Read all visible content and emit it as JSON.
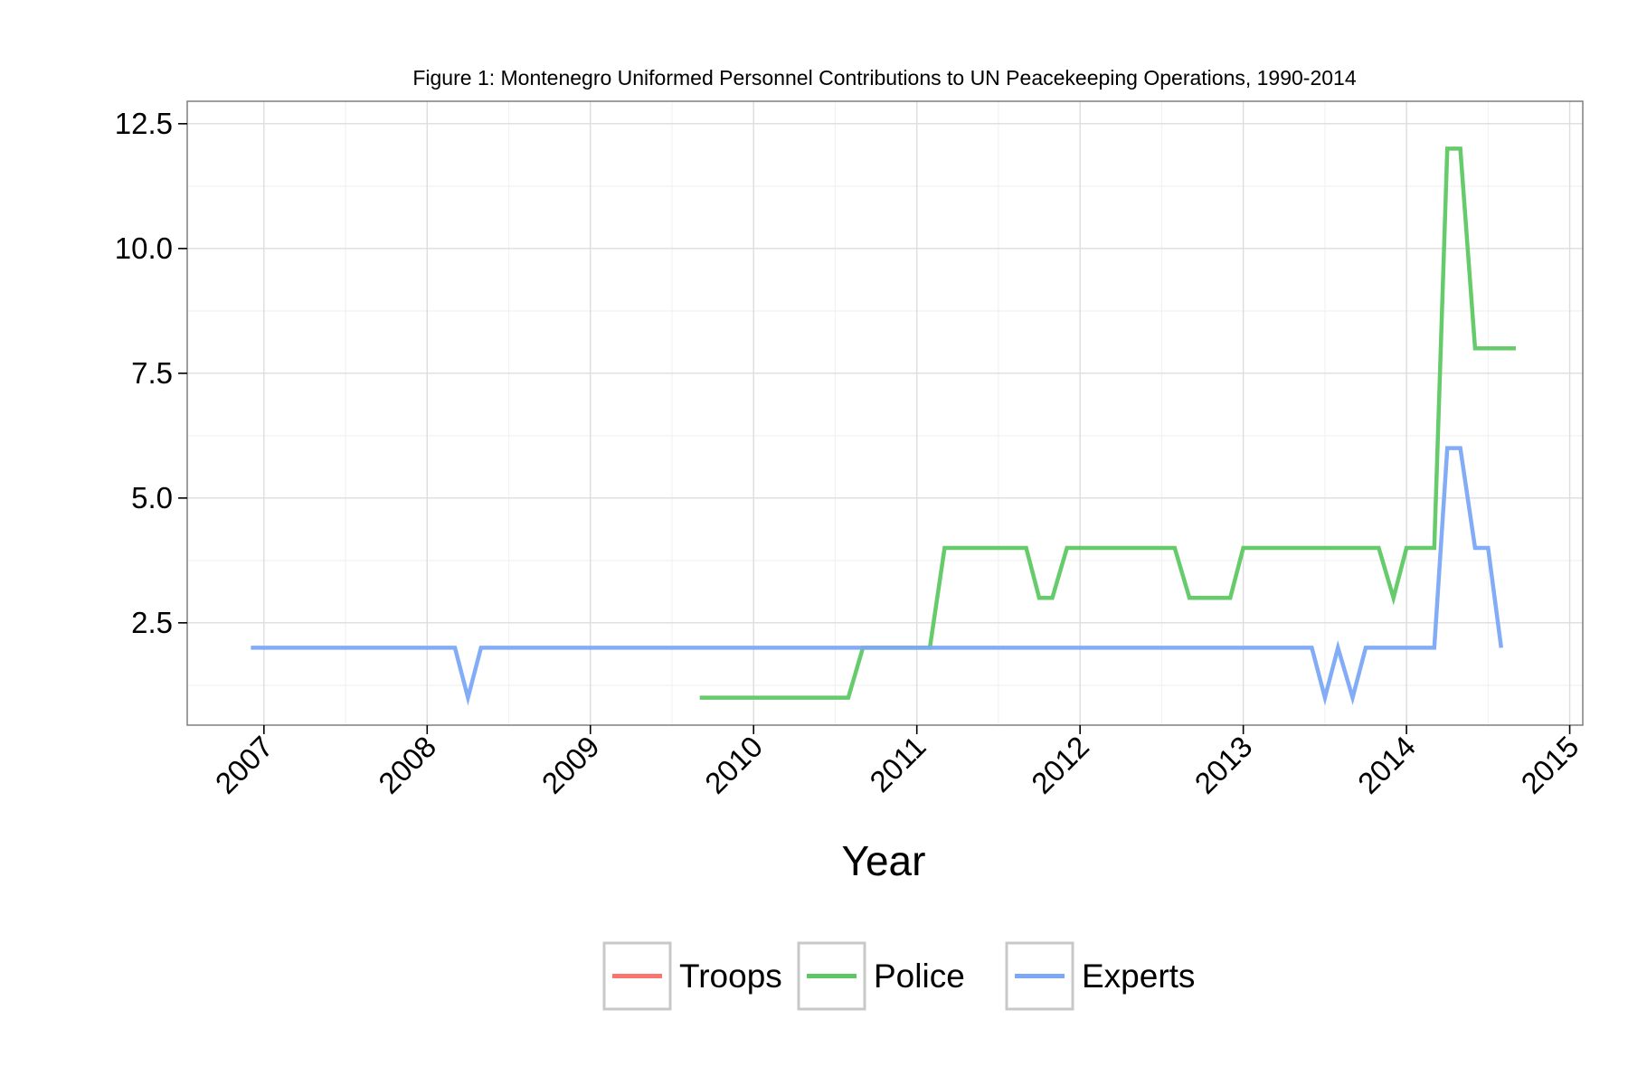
{
  "chart_data": {
    "type": "line",
    "title": "Figure 1: Montenegro Uniformed Personnel Contributions to UN Peacekeeping Operations, 1990-2014",
    "xlabel": "Year",
    "ylabel": "",
    "xlim": [
      2006.53,
      2015.08
    ],
    "ylim": [
      0.45,
      12.95
    ],
    "x_ticks": [
      2007,
      2008,
      2009,
      2010,
      2011,
      2012,
      2013,
      2014,
      2015
    ],
    "x_tick_labels": [
      "2007",
      "2008",
      "2009",
      "2010",
      "2011",
      "2012",
      "2013",
      "2014",
      "2015"
    ],
    "y_ticks": [
      2.5,
      5.0,
      7.5,
      10.0,
      12.5
    ],
    "y_tick_labels": [
      "2.5",
      "5.0",
      "7.5",
      "10.0",
      "12.5"
    ],
    "grid": true,
    "legend_position": "bottom",
    "series": [
      {
        "name": "Troops",
        "color": "#F8766D",
        "x": [],
        "values": []
      },
      {
        "name": "Police",
        "color": "#5DC863",
        "x": [
          2009.67,
          2010.58,
          2010.67,
          2011.08,
          2011.17,
          2011.67,
          2011.75,
          2011.83,
          2011.92,
          2012.58,
          2012.67,
          2012.92,
          2013.0,
          2013.83,
          2013.92,
          2014.0,
          2014.17,
          2014.25,
          2014.33,
          2014.42,
          2014.67
        ],
        "values": [
          1,
          1,
          2,
          2,
          4,
          4,
          3,
          3,
          4,
          4,
          3,
          3,
          4,
          4,
          3,
          4,
          4,
          12,
          12,
          8,
          8
        ]
      },
      {
        "name": "Experts",
        "color": "#7CA8F5",
        "x": [
          2006.92,
          2008.17,
          2008.25,
          2008.33,
          2013.42,
          2013.5,
          2013.58,
          2013.67,
          2013.75,
          2014.17,
          2014.25,
          2014.33,
          2014.42,
          2014.5,
          2014.58
        ],
        "values": [
          2,
          2,
          1,
          2,
          2,
          1,
          2,
          1,
          2,
          2,
          6,
          6,
          4,
          4,
          2
        ]
      }
    ]
  }
}
